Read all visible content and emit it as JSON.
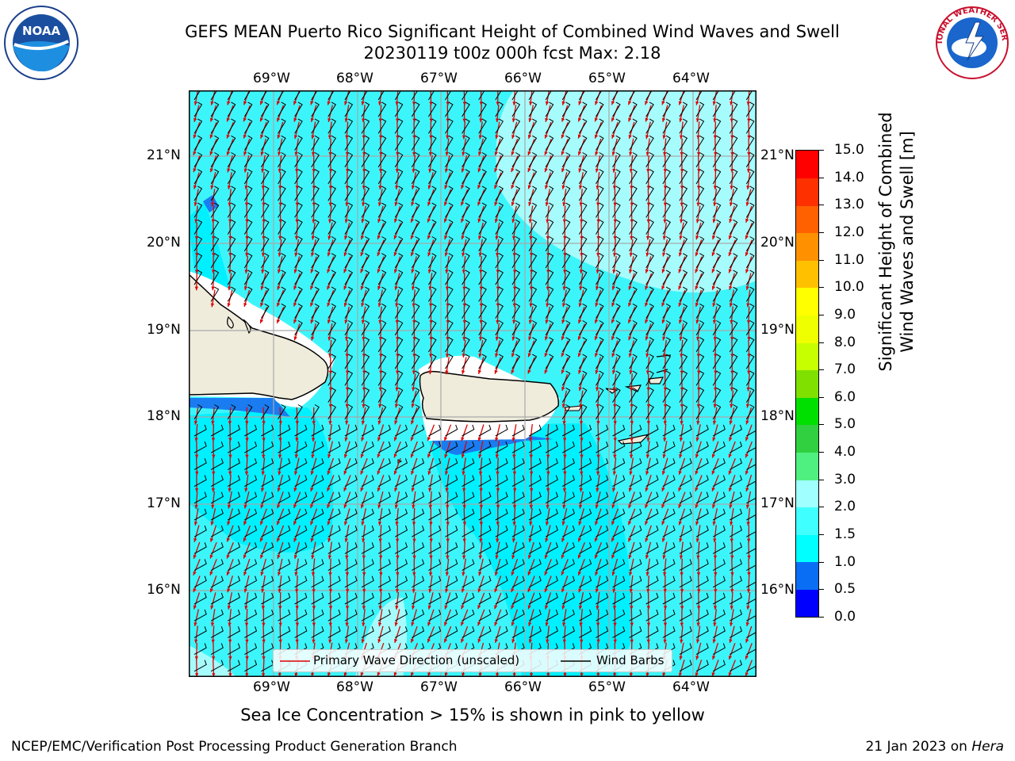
{
  "title": {
    "line1": "GEFS MEAN Puerto Rico Significant Height of Combined Wind Waves and Swell",
    "line2": "20230119 t00z 000h fcst   Max: 2.18"
  },
  "logos": {
    "left_text": "NOAA",
    "right_text": "NATIONAL WEATHER SERVICE"
  },
  "map": {
    "lon_ticks": [
      "69°W",
      "68°W",
      "67°W",
      "66°W",
      "65°W",
      "64°W"
    ],
    "lat_ticks": [
      "21°N",
      "20°N",
      "19°N",
      "18°N",
      "17°N",
      "16°N"
    ],
    "legend": {
      "wave_label": "Primary Wave Direction (unscaled)",
      "barb_label": "Wind Barbs"
    }
  },
  "colorbar": {
    "title_line1": "Significant Height of Combined",
    "title_line2": "Wind Waves and Swell [m]",
    "ticks": [
      "15.0",
      "14.0",
      "13.0",
      "12.0",
      "11.0",
      "10.0",
      "9.0",
      "8.0",
      "7.0",
      "6.0",
      "5.0",
      "4.0",
      "3.0",
      "2.0",
      "1.5",
      "1.0",
      "0.5",
      "0.0"
    ],
    "bands_bottom_to_top": [
      "#0000ff",
      "#0a6ef5",
      "#00ffff",
      "#40ffff",
      "#a0ffff",
      "#50f080",
      "#30d040",
      "#00e000",
      "#80e000",
      "#c8ff00",
      "#f0ff00",
      "#ffff00",
      "#ffc000",
      "#ff9000",
      "#ff6000",
      "#ff3000",
      "#ff0000"
    ]
  },
  "colors": {
    "ocean_main": "#3cf5fa",
    "ocean_light": "#a6fcfc",
    "ocean_cyan": "#00f0ff",
    "ocean_blue": "#1a7cf0",
    "land": "#efecdc",
    "wave_arrow": "#e00000",
    "barb": "#000000"
  },
  "subtitle": "Sea Ice Concentration > 15% is shown in pink to yellow",
  "footer": {
    "left": "NCEP/EMC/Verification Post Processing Product Generation Branch",
    "right_date": "21 Jan 2023 on ",
    "right_host": "Hera"
  }
}
